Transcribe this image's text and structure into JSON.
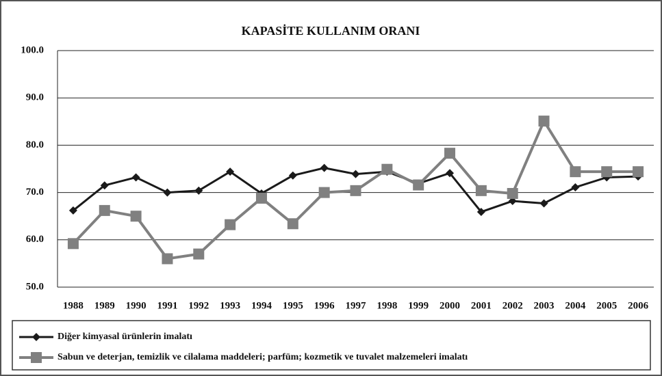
{
  "chart_data": {
    "type": "line",
    "title": "KAPASİTE KULLANIM ORANI",
    "categories": [
      "1988",
      "1989",
      "1990",
      "1991",
      "1992",
      "1993",
      "1994",
      "1995",
      "1996",
      "1997",
      "1998",
      "1999",
      "2000",
      "2001",
      "2002",
      "2003",
      "2004",
      "2005",
      "2006"
    ],
    "series": [
      {
        "name": "Diğer kimyasal ürünlerin imalatı",
        "color": "#1a1a1a",
        "marker": "diamond",
        "values": [
          66.2,
          71.5,
          73.2,
          70.0,
          70.4,
          74.4,
          69.8,
          73.6,
          75.2,
          73.9,
          74.4,
          71.9,
          74.1,
          65.9,
          68.2,
          67.7,
          71.1,
          73.2,
          73.4
        ]
      },
      {
        "name": "Sabun ve deterjan, temizlik ve cilalama maddeleri; parfüm; kozmetik ve tuvalet malzemeleri imalatı",
        "color": "#808080",
        "marker": "square",
        "values": [
          59.2,
          66.2,
          65.0,
          56.0,
          57.0,
          63.2,
          68.8,
          63.4,
          70.0,
          70.4,
          74.9,
          71.6,
          78.3,
          70.4,
          69.8,
          85.1,
          74.4,
          74.4,
          74.4
        ]
      }
    ],
    "ylim": [
      50,
      100
    ],
    "yticks": [
      {
        "value": 50,
        "label": "50.0"
      },
      {
        "value": 60,
        "label": "60.0"
      },
      {
        "value": 70,
        "label": "70.0"
      },
      {
        "value": 80,
        "label": "80.0"
      },
      {
        "value": 90,
        "label": "90.0"
      },
      {
        "value": 100,
        "label": "100.0"
      }
    ],
    "grid": true,
    "legend": "bottom"
  }
}
